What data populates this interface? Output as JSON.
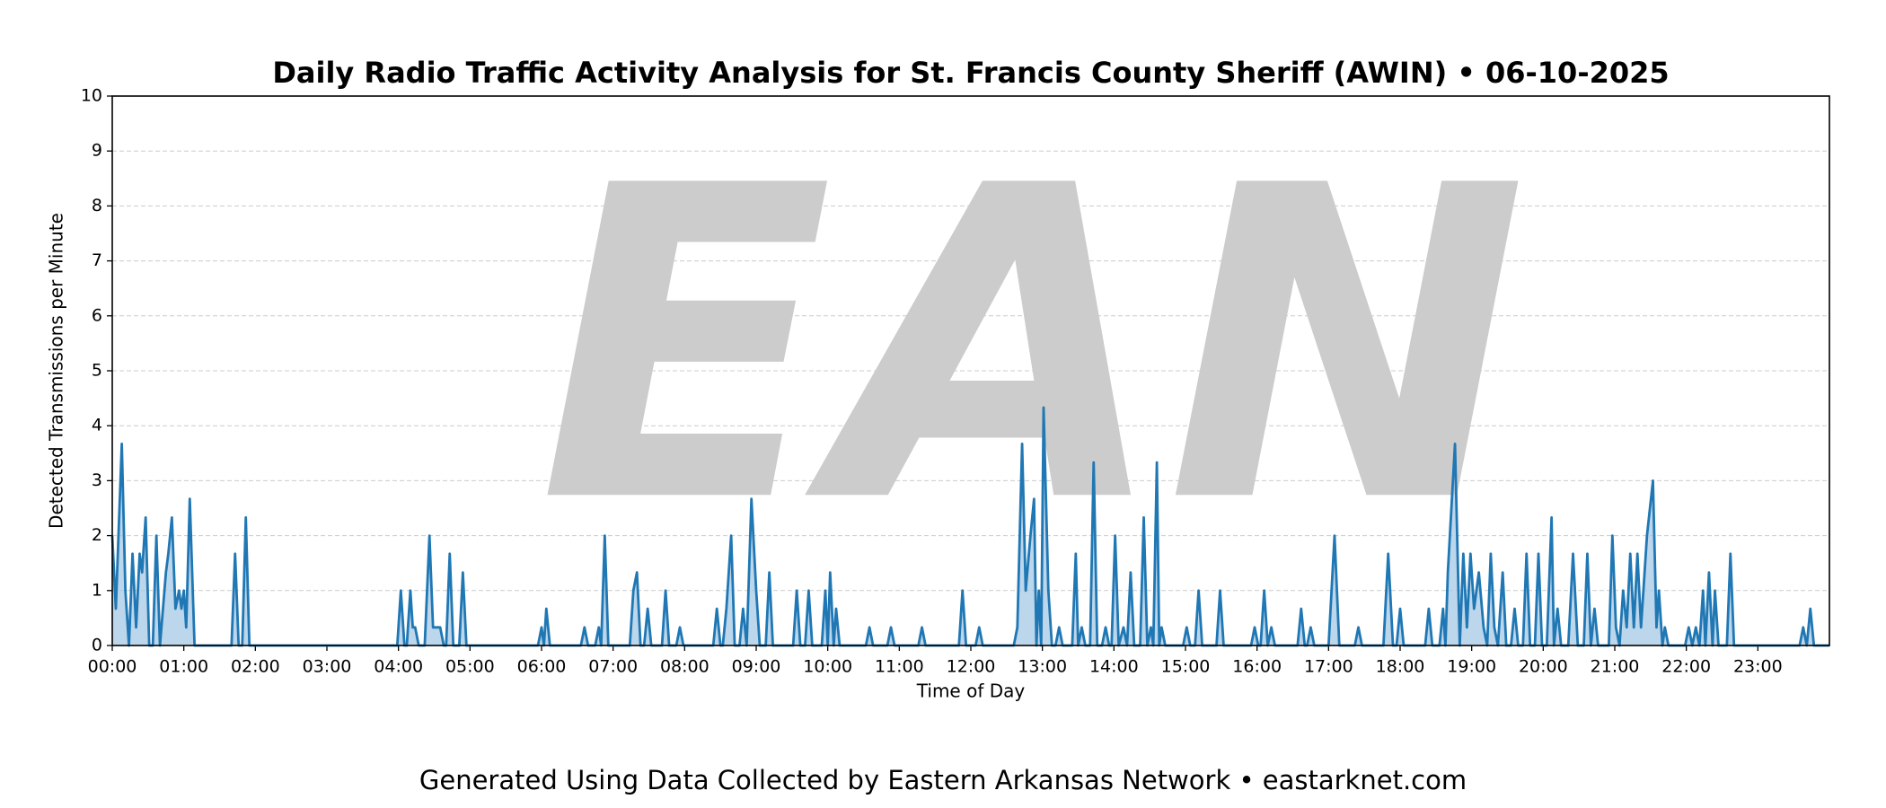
{
  "chart_data": {
    "type": "area-line",
    "title": "Daily Radio Traffic Activity Analysis for St. Francis County Sheriff (AWIN) • 06-10-2025",
    "x_label": "Time of Day",
    "y_label": "Detected Transmissions per Minute",
    "footer": "Generated Using Data Collected by Eastern Arkansas Network • eastarknet.com",
    "watermark": "EAN",
    "color": "#1f77b4",
    "fill_color": "#a6c8e4",
    "grid": true,
    "xlim": [
      0,
      1440
    ],
    "ylim": [
      0,
      10
    ],
    "yticks": [
      0,
      1,
      2,
      3,
      4,
      5,
      6,
      7,
      8,
      9,
      10
    ],
    "xticks": [
      {
        "value": 0,
        "label": "00:00"
      },
      {
        "value": 60,
        "label": "01:00"
      },
      {
        "value": 120,
        "label": "02:00"
      },
      {
        "value": 180,
        "label": "03:00"
      },
      {
        "value": 240,
        "label": "04:00"
      },
      {
        "value": 300,
        "label": "05:00"
      },
      {
        "value": 360,
        "label": "06:00"
      },
      {
        "value": 420,
        "label": "07:00"
      },
      {
        "value": 480,
        "label": "08:00"
      },
      {
        "value": 540,
        "label": "09:00"
      },
      {
        "value": 600,
        "label": "10:00"
      },
      {
        "value": 660,
        "label": "11:00"
      },
      {
        "value": 720,
        "label": "12:00"
      },
      {
        "value": 780,
        "label": "13:00"
      },
      {
        "value": 840,
        "label": "14:00"
      },
      {
        "value": 900,
        "label": "15:00"
      },
      {
        "value": 960,
        "label": "16:00"
      },
      {
        "value": 1020,
        "label": "17:00"
      },
      {
        "value": 1080,
        "label": "18:00"
      },
      {
        "value": 1140,
        "label": "19:00"
      },
      {
        "value": 1200,
        "label": "20:00"
      },
      {
        "value": 1260,
        "label": "21:00"
      },
      {
        "value": 1320,
        "label": "22:00"
      },
      {
        "value": 1380,
        "label": "23:00"
      }
    ],
    "x": [
      0,
      3,
      8,
      11,
      14,
      17,
      20,
      23,
      25,
      28,
      31,
      34,
      37,
      40,
      45,
      47,
      50,
      53,
      56,
      58,
      60,
      62,
      65,
      69,
      100,
      103,
      106,
      109,
      112,
      115,
      239,
      242,
      245,
      247,
      250,
      252,
      254,
      257,
      262,
      266,
      269,
      272,
      275,
      278,
      280,
      283,
      286,
      291,
      294,
      297,
      357,
      360,
      362,
      364,
      367,
      393,
      396,
      399,
      405,
      408,
      410,
      413,
      416,
      434,
      437,
      440,
      443,
      446,
      449,
      452,
      461,
      464,
      467,
      473,
      476,
      479,
      504,
      507,
      510,
      512,
      515,
      519,
      522,
      526,
      529,
      532,
      536,
      540,
      543,
      548,
      551,
      554,
      571,
      574,
      577,
      581,
      584,
      587,
      595,
      598,
      600,
      602,
      605,
      607,
      610,
      632,
      635,
      638,
      650,
      653,
      656,
      676,
      679,
      682,
      710,
      713,
      716,
      724,
      727,
      730,
      756,
      759,
      763,
      766,
      770,
      773,
      775,
      777,
      779,
      781,
      785,
      788,
      791,
      794,
      797,
      805,
      808,
      810,
      813,
      816,
      820,
      823,
      826,
      830,
      833,
      836,
      838,
      841,
      844,
      848,
      851,
      854,
      857,
      862,
      865,
      868,
      871,
      873,
      876,
      878,
      880,
      883,
      898,
      901,
      904,
      908,
      911,
      914,
      926,
      929,
      932,
      955,
      958,
      961,
      963,
      966,
      969,
      972,
      975,
      994,
      997,
      1000,
      1002,
      1005,
      1008,
      1020,
      1025,
      1029,
      1042,
      1045,
      1048,
      1066,
      1070,
      1074,
      1077,
      1080,
      1083,
      1101,
      1104,
      1107,
      1113,
      1116,
      1118,
      1120,
      1126,
      1130,
      1133,
      1136,
      1139,
      1142,
      1146,
      1150,
      1153,
      1156,
      1159,
      1162,
      1166,
      1169,
      1173,
      1176,
      1179,
      1183,
      1186,
      1189,
      1193,
      1196,
      1199,
      1203,
      1207,
      1209,
      1212,
      1215,
      1221,
      1225,
      1229,
      1234,
      1237,
      1240,
      1243,
      1246,
      1255,
      1258,
      1261,
      1264,
      1267,
      1270,
      1273,
      1276,
      1279,
      1282,
      1287,
      1292,
      1295,
      1297,
      1300,
      1302,
      1305,
      1319,
      1322,
      1325,
      1328,
      1331,
      1334,
      1336,
      1339,
      1342,
      1344,
      1347,
      1354,
      1357,
      1360,
      1415,
      1418,
      1421,
      1424,
      1427,
      1440
    ],
    "values": [
      2,
      0.67,
      3.67,
      1,
      0,
      1.67,
      0.33,
      1.67,
      1.33,
      2.33,
      0,
      0,
      2,
      0,
      1.33,
      1.67,
      2.33,
      0.67,
      1,
      0.67,
      1,
      0.33,
      2.67,
      0,
      0,
      1.67,
      0,
      0,
      2.33,
      0,
      0,
      1,
      0,
      0,
      1,
      0.33,
      0.33,
      0,
      0,
      2,
      0.33,
      0.33,
      0.33,
      0,
      0,
      1.67,
      0,
      0,
      1.33,
      0,
      0,
      0.33,
      0,
      0.67,
      0,
      0,
      0.33,
      0,
      0,
      0.33,
      0,
      2,
      0,
      0,
      1,
      1.33,
      0,
      0,
      0.67,
      0,
      0,
      1,
      0,
      0,
      0.33,
      0,
      0,
      0.67,
      0,
      0,
      0.67,
      2,
      0,
      0,
      0.67,
      0,
      2.67,
      1,
      0,
      0,
      1.33,
      0,
      0,
      1,
      0,
      0,
      1,
      0,
      0,
      1,
      0,
      1.33,
      0,
      0.67,
      0,
      0,
      0.33,
      0,
      0,
      0.33,
      0,
      0,
      0.33,
      0,
      0,
      1,
      0,
      0,
      0.33,
      0,
      0,
      0.33,
      3.67,
      1,
      2,
      2.67,
      0,
      1,
      0,
      4.33,
      1,
      0,
      0,
      0.33,
      0,
      0,
      1.67,
      0,
      0.33,
      0,
      0,
      3.33,
      0,
      0,
      0.33,
      0,
      0,
      2,
      0,
      0.33,
      0,
      1.33,
      0,
      0,
      2.33,
      0,
      0.33,
      0,
      3.33,
      0,
      0.33,
      0,
      0,
      0.33,
      0,
      0,
      1,
      0,
      0,
      1,
      0,
      0,
      0.33,
      0,
      0,
      1,
      0,
      0.33,
      0,
      0,
      0.67,
      0,
      0,
      0.33,
      0,
      0,
      2,
      0,
      0,
      0.33,
      0,
      0,
      1.67,
      0,
      0,
      0.67,
      0,
      0,
      0.67,
      0,
      0,
      0.67,
      0,
      1.33,
      3.67,
      0,
      1.67,
      0.33,
      1.67,
      0.67,
      1.33,
      0.33,
      0,
      1.67,
      0.33,
      0,
      1.33,
      0,
      0,
      0.67,
      0,
      0,
      1.67,
      0,
      0,
      1.67,
      0,
      0,
      2.33,
      0,
      0.67,
      0,
      0,
      1.67,
      0,
      0,
      1.67,
      0,
      0.67,
      0,
      0,
      2,
      0.33,
      0,
      1,
      0.33,
      1.67,
      0.33,
      1.67,
      0.33,
      2,
      3,
      0.33,
      1,
      0,
      0.33,
      0,
      0,
      0.33,
      0,
      0.33,
      0,
      1,
      0,
      1.33,
      0,
      1,
      0,
      0,
      1.67,
      0,
      0,
      0.33,
      0,
      0.67,
      0,
      0
    ]
  }
}
